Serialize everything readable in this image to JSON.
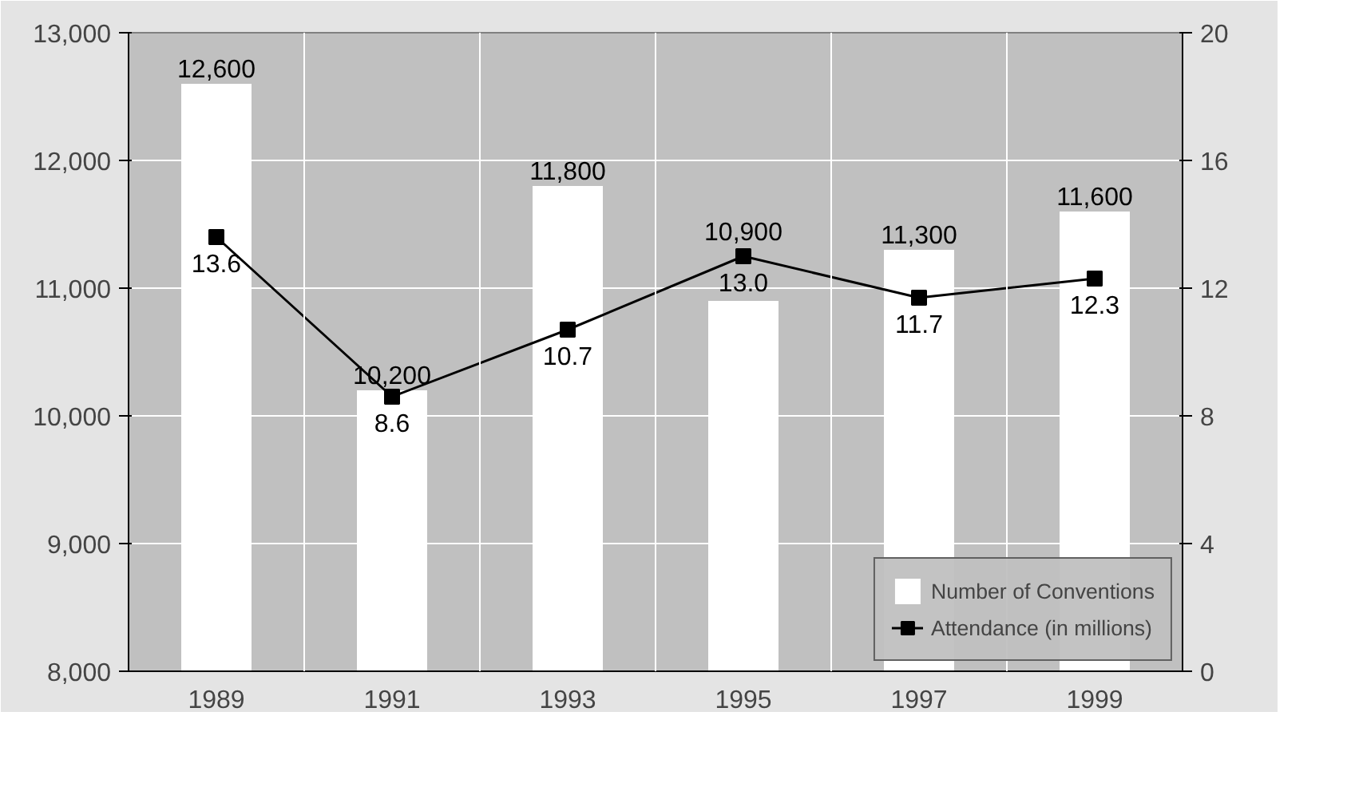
{
  "chart_data": {
    "type": "bar",
    "categories": [
      "1989",
      "1991",
      "1993",
      "1995",
      "1997",
      "1999"
    ],
    "series": [
      {
        "name": "Number of Conventions",
        "color": "#ffffff",
        "values": [
          12600,
          10200,
          11800,
          10900,
          11300,
          11600
        ]
      },
      {
        "name": "Attendance (in millions)",
        "type": "line",
        "axis": "y2",
        "color": "#000000",
        "marker": "square",
        "values": [
          13.6,
          8.6,
          10.7,
          13.0,
          11.7,
          12.3
        ]
      }
    ],
    "ylim": [
      8000,
      13000
    ],
    "yticks": [
      {
        "value": 8000,
        "label": "8,000"
      },
      {
        "value": 9000,
        "label": "9,000"
      },
      {
        "value": 10000,
        "label": "10,000"
      },
      {
        "value": 11000,
        "label": "11,000"
      },
      {
        "value": 12000,
        "label": "12,000"
      },
      {
        "value": 13000,
        "label": "13,000"
      }
    ],
    "y2lim": [
      0,
      20
    ],
    "y2ticks": [
      0,
      4,
      8,
      12,
      16,
      20
    ],
    "value_labels": [
      [
        "12,600",
        "10,200",
        "11,800",
        "10,900",
        "11,300",
        "11,600"
      ],
      [
        "13.6",
        "8.6",
        "10.7",
        "13.0",
        "11.7",
        "12.3"
      ]
    ],
    "grid": true,
    "legend": "bottom right"
  }
}
